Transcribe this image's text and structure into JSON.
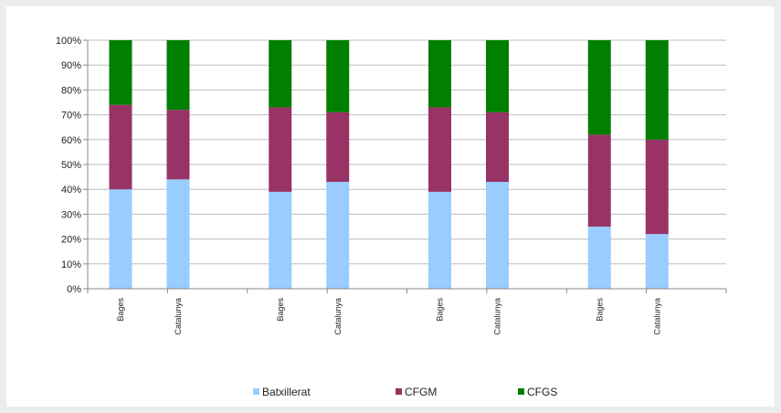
{
  "chart_data": {
    "type": "bar",
    "stacked": true,
    "normalized_percent": true,
    "categories": [
      "Bages",
      "Catalunya",
      "Bages",
      "Catalunya",
      "Bages",
      "Catalunya",
      "Bages",
      "Catalunya"
    ],
    "groups": [
      [
        "Bages",
        "Catalunya"
      ],
      [
        "Bages",
        "Catalunya"
      ],
      [
        "Bages",
        "Catalunya"
      ],
      [
        "Bages",
        "Catalunya"
      ]
    ],
    "series": [
      {
        "name": "Batxillerat",
        "color": "#99ccff",
        "values": [
          40,
          44,
          39,
          43,
          39,
          43,
          25,
          22
        ]
      },
      {
        "name": "CFGM",
        "color": "#993366",
        "values": [
          34,
          28,
          34,
          28,
          34,
          28,
          37,
          38
        ]
      },
      {
        "name": "CFGS",
        "color": "#007f00",
        "values": [
          26,
          28,
          27,
          29,
          27,
          29,
          38,
          40
        ]
      }
    ],
    "yticks": [
      "0%",
      "10%",
      "20%",
      "30%",
      "40%",
      "50%",
      "60%",
      "70%",
      "80%",
      "90%",
      "100%"
    ],
    "ylim": [
      0,
      100
    ],
    "grid": true,
    "legend_position": "bottom"
  }
}
